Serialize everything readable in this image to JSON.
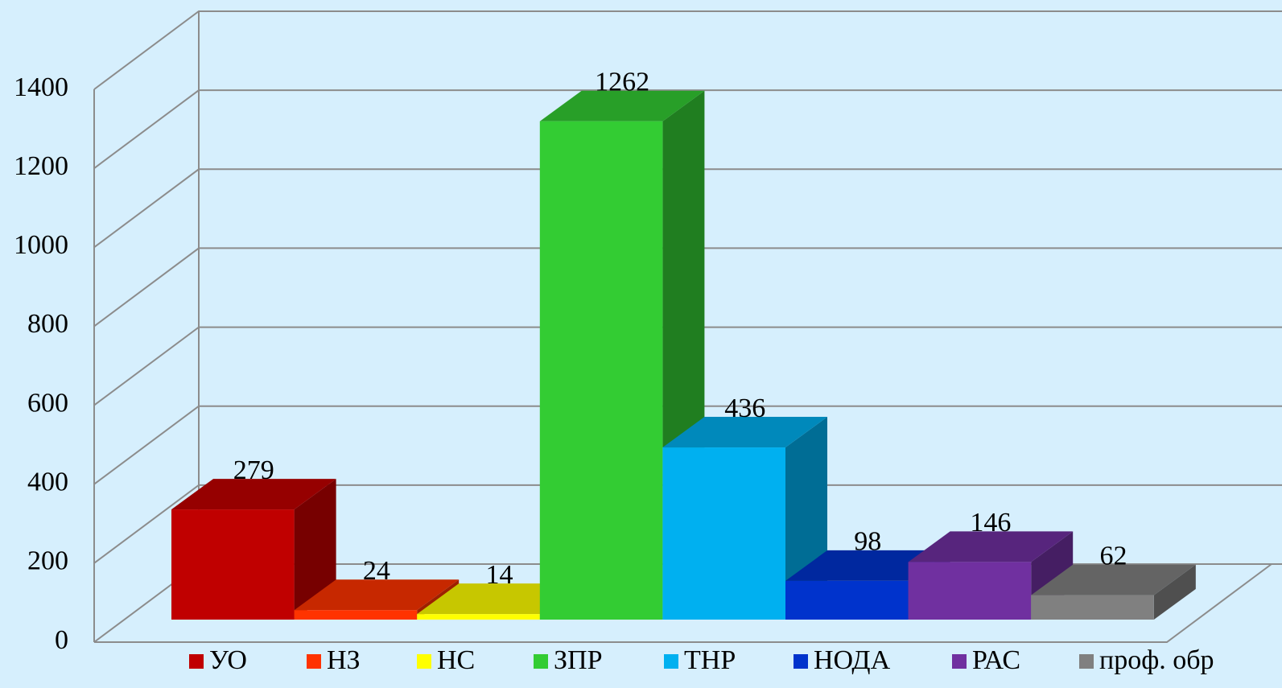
{
  "chart_data": {
    "type": "bar3d",
    "categories": [
      "УО",
      "НЗ",
      "НС",
      "ЗПР",
      "ТНР",
      "НОДА",
      "РАС",
      "проф. обр"
    ],
    "values": [
      279,
      24,
      14,
      1262,
      436,
      98,
      146,
      62
    ],
    "colors": [
      "#c00000",
      "#ff3300",
      "#ffff00",
      "#33cc33",
      "#00b0f0",
      "#0033cc",
      "#7030a0",
      "#808080"
    ],
    "ylim": [
      0,
      1400
    ],
    "yticks": [
      0,
      200,
      400,
      600,
      800,
      1000,
      1200,
      1400
    ],
    "grid": true,
    "legend": "bottom"
  }
}
